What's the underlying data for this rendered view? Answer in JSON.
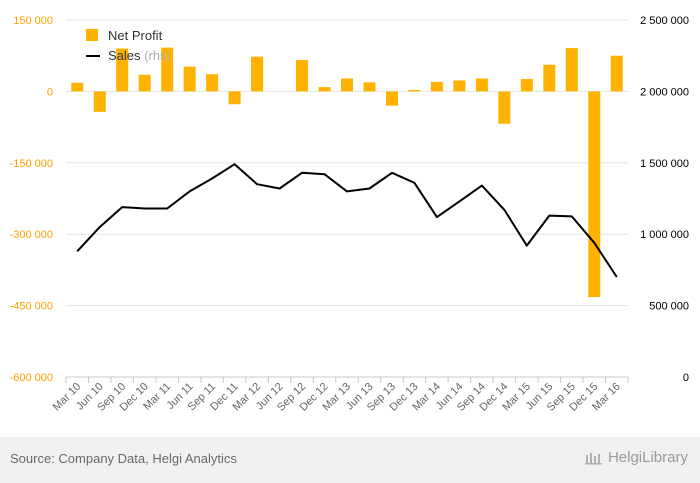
{
  "chart_data": {
    "type": "bar",
    "categories": [
      "Mar 10",
      "Jun 10",
      "Sep 10",
      "Dec 10",
      "Mar 11",
      "Jun 11",
      "Sep 11",
      "Dec 11",
      "Mar 12",
      "Jun 12",
      "Sep 12",
      "Dec 12",
      "Mar 13",
      "Jun 13",
      "Sep 13",
      "Dec 13",
      "Mar 14",
      "Jun 14",
      "Sep 14",
      "Dec 14",
      "Mar 15",
      "Jun 15",
      "Sep 15",
      "Dec 15",
      "Mar 16"
    ],
    "series": [
      {
        "name": "Net Profit",
        "type": "bar",
        "axis": "left",
        "color": "#FFB300",
        "values": [
          18000,
          -43000,
          90000,
          35000,
          92000,
          52000,
          36000,
          -27000,
          73000,
          0,
          66000,
          9000,
          27000,
          19000,
          -30000,
          3000,
          20000,
          23000,
          27000,
          -68000,
          26000,
          56000,
          91000,
          -432000,
          75000
        ]
      },
      {
        "name": "Sales",
        "type": "line",
        "axis": "right",
        "color": "#000000",
        "values": [
          880000,
          1050000,
          1190000,
          1180000,
          1180000,
          1300000,
          1390000,
          1490000,
          1350000,
          1320000,
          1430000,
          1420000,
          1300000,
          1320000,
          1430000,
          1360000,
          1120000,
          1230000,
          1340000,
          1170000,
          920000,
          1130000,
          1125000,
          940000,
          700000
        ]
      }
    ],
    "legend": {
      "position": "top-left",
      "items": [
        {
          "label": "Net Profit",
          "suffix": ""
        },
        {
          "label": "Sales",
          "suffix": " (rhs)"
        }
      ]
    },
    "y_left": {
      "ylim": [
        -600000,
        150000
      ],
      "ticks": [
        150000,
        0,
        -150000,
        -300000,
        -450000,
        -600000
      ],
      "tick_labels": [
        "150 000",
        "0",
        "-150 000",
        "-300 000",
        "-450 000",
        "-600 000"
      ],
      "label_color": "#FFA000"
    },
    "y_right": {
      "ylim": [
        0,
        2500000
      ],
      "ticks": [
        2500000,
        2000000,
        1500000,
        1000000,
        500000,
        0
      ],
      "tick_labels": [
        "2 500 000",
        "2 000 000",
        "1 500 000",
        "1 000 000",
        "500 000",
        "0"
      ],
      "label_color": "#000000"
    },
    "grid": true,
    "xlabel": "",
    "ylabel": "",
    "title": ""
  },
  "footer": {
    "source": "Source: Company Data, Helgi Analytics",
    "brand": "HelgiLibrary"
  }
}
